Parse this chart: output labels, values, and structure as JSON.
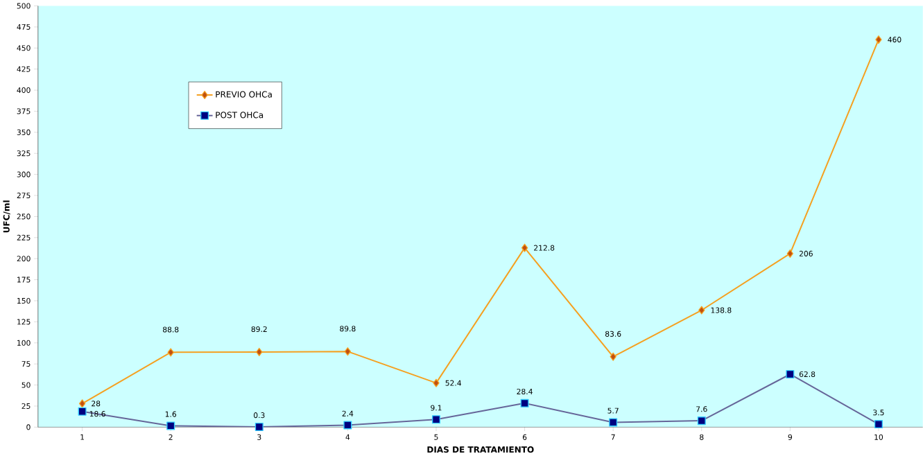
{
  "chart_data": {
    "type": "line",
    "xlabel": "DIAS DE TRATAMIENTO",
    "ylabel": "UFC/ml",
    "categories": [
      "1",
      "2",
      "3",
      "4",
      "5",
      "6",
      "7",
      "8",
      "9",
      "10"
    ],
    "series": [
      {
        "name": "PREVIO OHCa",
        "color": "#f5a020",
        "marker": "diamond",
        "values": [
          28,
          88.8,
          89.2,
          89.8,
          52.4,
          212.8,
          83.6,
          138.8,
          206,
          460
        ]
      },
      {
        "name": "POST OHCa",
        "color": "#666699",
        "marker": "square",
        "values": [
          18.6,
          1.6,
          0.3,
          2.4,
          9.1,
          28.4,
          5.7,
          7.6,
          62.8,
          3.5
        ]
      }
    ],
    "ylim": [
      0,
      500
    ],
    "yticks": [
      0,
      25,
      50,
      75,
      100,
      125,
      150,
      175,
      200,
      225,
      250,
      275,
      300,
      325,
      350,
      375,
      400,
      425,
      450,
      475,
      500
    ],
    "data_labels": true,
    "legend": "top left",
    "grid": false,
    "line_style": "solid"
  }
}
